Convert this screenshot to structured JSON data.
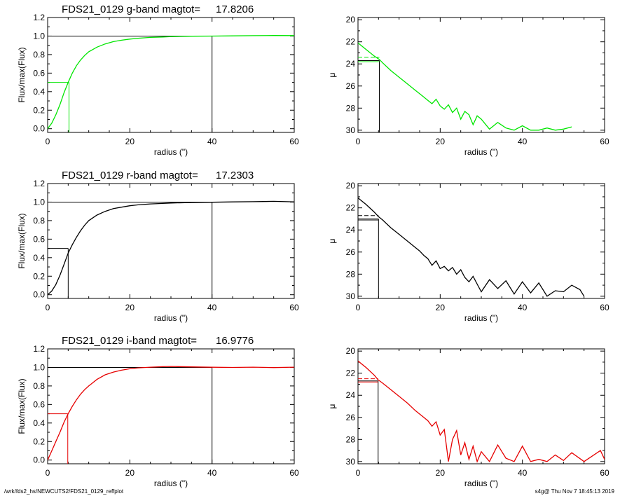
{
  "footer": {
    "left": "/wrk/fds2_hs/NEWCUTS2/FDS21_0129_reffplot",
    "right": "s4g@  Thu Nov  7 18:45:13 2019"
  },
  "colors": {
    "g": "#00e600",
    "r": "#000000",
    "i": "#e60000",
    "axis": "#000000"
  },
  "chart_data": [
    {
      "type": "line",
      "band": "g",
      "title_label": "FDS21_0129 g-band  magtot=",
      "title_value": "17.8206",
      "xlabel": "radius (\")",
      "ylabel": "Flux/max(Flux)",
      "xlim": [
        0,
        60
      ],
      "ylim": [
        -0.04,
        1.2
      ],
      "xticks": [
        "0",
        "20",
        "40",
        "60"
      ],
      "yticks": [
        "0.0",
        "0.2",
        "0.4",
        "0.6",
        "0.8",
        "1.0",
        "1.2"
      ],
      "x": [
        0,
        1,
        2,
        3,
        4,
        5,
        6,
        7,
        8,
        9,
        10,
        12,
        14,
        16,
        18,
        20,
        22,
        25,
        28,
        30,
        35,
        40,
        45,
        50,
        55,
        60
      ],
      "y": [
        0,
        0.06,
        0.15,
        0.26,
        0.39,
        0.5,
        0.6,
        0.68,
        0.74,
        0.79,
        0.83,
        0.88,
        0.915,
        0.94,
        0.955,
        0.967,
        0.976,
        0.985,
        0.99,
        0.994,
        0.998,
        1.0,
        1.002,
        1.004,
        1.006,
        1.005
      ],
      "half_light_radius": 5.2,
      "total_radius": 40
    },
    {
      "type": "line",
      "band": "g",
      "xlabel": "radius (\")",
      "ylabel": "μ",
      "xlim": [
        0,
        60
      ],
      "ylim": [
        30.2,
        19.8
      ],
      "inverted_y": true,
      "xticks": [
        "0",
        "20",
        "40",
        "60"
      ],
      "yticks": [
        "20",
        "22",
        "24",
        "26",
        "28",
        "30"
      ],
      "x": [
        0,
        2,
        4,
        5.2,
        6,
        8,
        10,
        12,
        14,
        15,
        16,
        17,
        18,
        19,
        20,
        21,
        22,
        23,
        24,
        25,
        26,
        27,
        28,
        29,
        30,
        32,
        34,
        36,
        38,
        40,
        42,
        44,
        46,
        48,
        50,
        52
      ],
      "y": [
        22.1,
        22.7,
        23.3,
        23.6,
        23.9,
        24.6,
        25.2,
        25.8,
        26.4,
        26.7,
        27.0,
        27.3,
        27.6,
        27.2,
        27.8,
        28.1,
        27.7,
        28.4,
        28.0,
        29.0,
        28.3,
        28.6,
        29.5,
        28.7,
        29.0,
        29.9,
        29.3,
        29.8,
        30.0,
        29.6,
        30.0,
        30.0,
        29.8,
        30.0,
        29.9,
        29.7
      ],
      "half_light_radius": 5.2,
      "half_light_mu": 23.7,
      "mean_mu": 23.4
    },
    {
      "type": "line",
      "band": "r",
      "title_label": "FDS21_0129 r-band  magtot=",
      "title_value": "17.2303",
      "xlabel": "radius (\")",
      "ylabel": "Flux/max(Flux)",
      "xlim": [
        0,
        60
      ],
      "ylim": [
        -0.04,
        1.2
      ],
      "xticks": [
        "0",
        "20",
        "40",
        "60"
      ],
      "yticks": [
        "0.0",
        "0.2",
        "0.4",
        "0.6",
        "0.8",
        "1.0",
        "1.2"
      ],
      "x": [
        0,
        1,
        2,
        3,
        4,
        5,
        6,
        7,
        8,
        9,
        10,
        12,
        14,
        16,
        18,
        20,
        22,
        25,
        28,
        30,
        35,
        40,
        45,
        50,
        55,
        60
      ],
      "y": [
        0,
        0.04,
        0.11,
        0.21,
        0.33,
        0.45,
        0.54,
        0.62,
        0.69,
        0.75,
        0.8,
        0.86,
        0.9,
        0.93,
        0.945,
        0.96,
        0.97,
        0.98,
        0.985,
        0.99,
        0.995,
        0.998,
        1.002,
        1.004,
        1.008,
        1.003
      ],
      "half_light_radius": 5.0,
      "total_radius": 40
    },
    {
      "type": "line",
      "band": "r",
      "xlabel": "radius (\")",
      "ylabel": "μ",
      "xlim": [
        0,
        60
      ],
      "ylim": [
        30.2,
        19.8
      ],
      "inverted_y": true,
      "xticks": [
        "0",
        "20",
        "40",
        "60"
      ],
      "yticks": [
        "20",
        "22",
        "24",
        "26",
        "28",
        "30"
      ],
      "x": [
        0,
        2,
        4,
        5,
        6,
        8,
        10,
        12,
        14,
        15,
        16,
        17,
        18,
        19,
        20,
        21,
        22,
        23,
        24,
        25,
        26,
        27,
        28,
        29,
        30,
        32,
        34,
        36,
        38,
        40,
        42,
        44,
        46,
        48,
        50,
        52,
        54,
        55
      ],
      "y": [
        21.1,
        21.7,
        22.4,
        22.8,
        23.1,
        23.8,
        24.4,
        25.0,
        25.6,
        25.9,
        26.3,
        26.6,
        27.2,
        26.8,
        27.5,
        27.3,
        27.7,
        27.4,
        28.0,
        27.6,
        28.3,
        28.7,
        28.2,
        28.9,
        29.6,
        28.5,
        29.3,
        28.6,
        29.8,
        28.7,
        29.7,
        28.8,
        30.0,
        29.5,
        29.6,
        29.0,
        29.4,
        30.0
      ],
      "half_light_radius": 5.0,
      "half_light_mu": 23.0,
      "mean_mu": 22.7
    },
    {
      "type": "line",
      "band": "i",
      "title_label": "FDS21_0129 i-band  magtot=",
      "title_value": "16.9776",
      "xlabel": "radius (\")",
      "ylabel": "Flux/max(Flux)",
      "xlim": [
        0,
        60
      ],
      "ylim": [
        -0.04,
        1.2
      ],
      "xticks": [
        "0",
        "20",
        "40",
        "60"
      ],
      "yticks": [
        "0.0",
        "0.2",
        "0.4",
        "0.6",
        "0.8",
        "1.0",
        "1.2"
      ],
      "x": [
        0,
        1,
        2,
        3,
        4,
        5,
        6,
        7,
        8,
        9,
        10,
        12,
        14,
        16,
        18,
        20,
        22,
        25,
        28,
        30,
        35,
        40,
        45,
        50,
        55,
        60
      ],
      "y": [
        0,
        0.1,
        0.2,
        0.3,
        0.41,
        0.5,
        0.58,
        0.65,
        0.71,
        0.76,
        0.8,
        0.87,
        0.92,
        0.95,
        0.97,
        0.985,
        0.995,
        1.003,
        1.008,
        1.01,
        1.006,
        1.002,
        1.0,
        1.003,
        0.998,
        1.003
      ],
      "half_light_radius": 4.9,
      "total_radius": 40
    },
    {
      "type": "line",
      "band": "i",
      "xlabel": "radius (\")",
      "ylabel": "μ",
      "xlim": [
        0,
        60
      ],
      "ylim": [
        30.2,
        19.8
      ],
      "inverted_y": true,
      "xticks": [
        "0",
        "20",
        "40",
        "60"
      ],
      "yticks": [
        "20",
        "22",
        "24",
        "26",
        "28",
        "30"
      ],
      "x": [
        0,
        2,
        4,
        4.9,
        6,
        8,
        10,
        12,
        14,
        15,
        16,
        17,
        18,
        19,
        20,
        21,
        22,
        23,
        24,
        25,
        26,
        27,
        28,
        29,
        30,
        32,
        34,
        36,
        38,
        40,
        42,
        44,
        46,
        48,
        50,
        52,
        55,
        59,
        60
      ],
      "y": [
        20.9,
        21.5,
        22.2,
        22.6,
        22.9,
        23.5,
        24.1,
        24.7,
        25.4,
        25.7,
        26.0,
        26.3,
        26.8,
        26.4,
        27.6,
        27.1,
        30.0,
        28.0,
        27.2,
        29.4,
        28.3,
        29.8,
        28.6,
        30.0,
        29.1,
        30.0,
        28.5,
        29.7,
        30.0,
        28.6,
        30.0,
        29.8,
        30.0,
        29.4,
        29.9,
        29.2,
        30.0,
        29.0,
        29.8
      ],
      "half_light_radius": 4.9,
      "half_light_mu": 22.7,
      "mean_mu": 22.5
    }
  ]
}
